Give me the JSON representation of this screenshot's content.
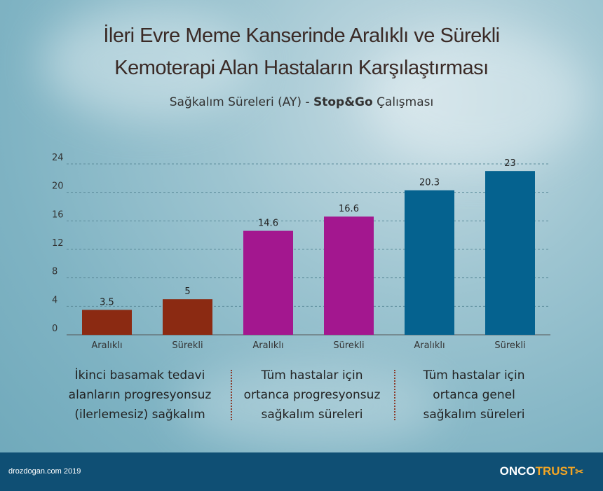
{
  "title_lines": [
    "İleri Evre Meme Kanserinde Aralıklı ve Sürekli",
    "Kemoterapi Alan Hastaların Karşılaştırması"
  ],
  "subtitle": {
    "before": "Sağkalım Süreleri (AY) - ",
    "bold": "Stop&Go",
    "after": " Çalışması"
  },
  "chart_data": {
    "type": "bar",
    "categories": [
      "Aralıklı",
      "Sürekli",
      "Aralıklı",
      "Sürekli",
      "Aralıklı",
      "Sürekli"
    ],
    "values": [
      3.5,
      5,
      14.6,
      16.6,
      20.3,
      23
    ],
    "value_labels": [
      "3.5",
      "5",
      "14.6",
      "16.6",
      "20.3",
      "23"
    ],
    "colors": [
      "#8b2a12",
      "#8b2a12",
      "#a3178f",
      "#a3178f",
      "#05628f",
      "#05628f"
    ],
    "yticks": [
      "0",
      "4",
      "8",
      "12",
      "16",
      "20",
      "24"
    ],
    "ylim": [
      0,
      24
    ],
    "grid": true,
    "xlabel": "",
    "ylabel": ""
  },
  "captions": [
    [
      "İkinci basamak tedavi",
      "alanların progresyonsuz",
      "(ilerlemesiz) sağkalım"
    ],
    [
      "Tüm hastalar için",
      "ortanca progresyonsuz",
      "sağkalım süreleri"
    ],
    [
      "Tüm hastalar için",
      "ortanca genel",
      "sağkalım süreleri"
    ]
  ],
  "footer": {
    "site": "drozdogan.com 2019",
    "logo_onco": "ONCO",
    "logo_trust": "TRUST",
    "logo_mark": "✂"
  }
}
